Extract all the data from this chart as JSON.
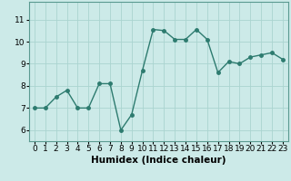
{
  "x": [
    0,
    1,
    2,
    3,
    4,
    5,
    6,
    7,
    8,
    9,
    10,
    11,
    12,
    13,
    14,
    15,
    16,
    17,
    18,
    19,
    20,
    21,
    22,
    23
  ],
  "y": [
    7.0,
    7.0,
    7.5,
    7.8,
    7.0,
    7.0,
    8.1,
    8.1,
    6.0,
    6.7,
    8.7,
    10.55,
    10.5,
    10.1,
    10.1,
    10.55,
    10.1,
    8.6,
    9.1,
    9.0,
    9.3,
    9.4,
    9.5,
    9.2
  ],
  "line_color": "#2d7b6f",
  "marker": "o",
  "markersize": 2.5,
  "linewidth": 1.0,
  "bg_color": "#cceae8",
  "grid_color": "#aad4d0",
  "xlabel": "Humidex (Indice chaleur)",
  "ylim": [
    5.5,
    11.8
  ],
  "xlim": [
    -0.5,
    23.5
  ],
  "yticks": [
    6,
    7,
    8,
    9,
    10,
    11
  ],
  "xlabel_fontsize": 7.5,
  "tick_fontsize": 6.5
}
